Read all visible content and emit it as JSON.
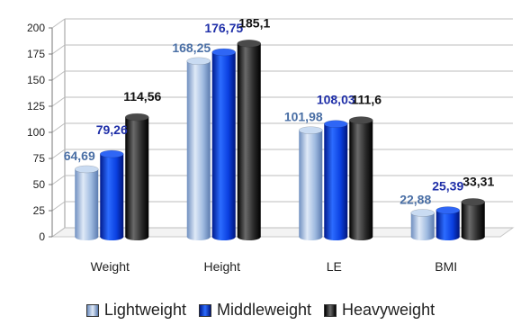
{
  "chart_data": {
    "type": "bar",
    "categories": [
      "Weight",
      "Height",
      "LE",
      "BMI"
    ],
    "series": [
      {
        "name": "Lightweight",
        "values": [
          64.69,
          168.25,
          101.98,
          22.88
        ],
        "labels": [
          "64,69",
          "168,25",
          "101,98",
          "22,88"
        ],
        "color": "#a9c4e6",
        "label_color": "#4a6fa5"
      },
      {
        "name": "Middleweight",
        "values": [
          79.26,
          176.75,
          108.03,
          25.39
        ],
        "labels": [
          "79,26",
          "176,75",
          "108,03",
          "25,39"
        ],
        "color": "#0a3fe0",
        "label_color": "#1f2fa8"
      },
      {
        "name": "Heavyweight",
        "values": [
          114.56,
          185.1,
          111.6,
          33.31
        ],
        "labels": [
          "114,56",
          "185,1",
          "111,6",
          "33,31"
        ],
        "color": "#2a2a2a",
        "label_color": "#111111"
      }
    ],
    "ylim": [
      0,
      200
    ],
    "yticks": [
      0,
      25,
      50,
      75,
      100,
      125,
      150,
      175,
      200
    ],
    "grid": true,
    "legend_position": "bottom"
  }
}
